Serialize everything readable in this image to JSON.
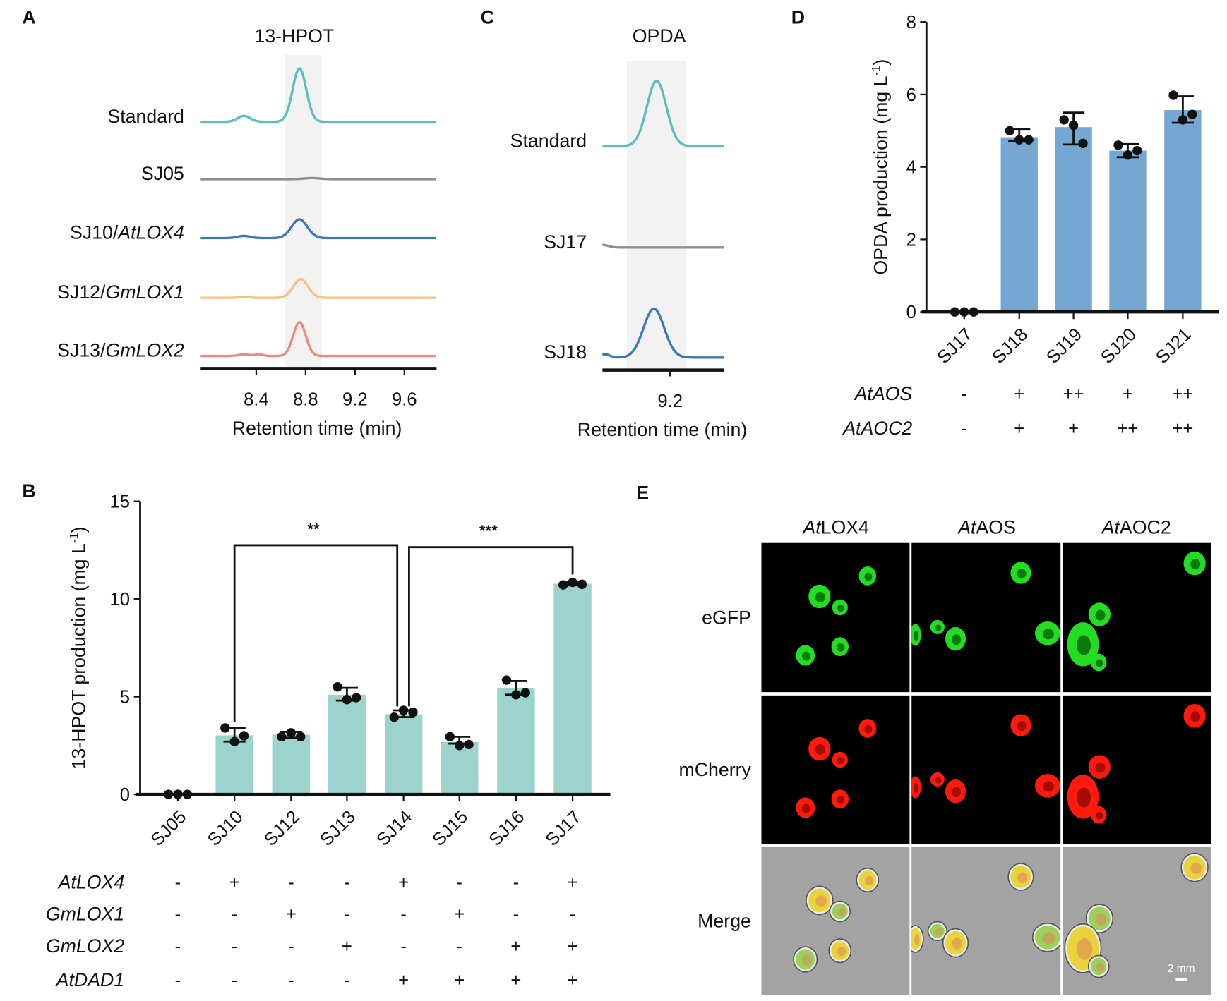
{
  "panels": {
    "A": "A",
    "B": "B",
    "C": "C",
    "D": "D",
    "E": "E"
  },
  "chart_data": [
    {
      "id": "A",
      "type": "line",
      "title": "13-HPOT",
      "xlabel": "Retention time (min)",
      "xlim": [
        7.95,
        9.86
      ],
      "xticks": [
        8.4,
        8.8,
        9.2,
        9.6
      ],
      "highlight_range": [
        8.63,
        8.93
      ],
      "grid": false,
      "traces": [
        {
          "label": "Standard",
          "label_italic": "",
          "color": "#5bbdbd",
          "peaks": [
            {
              "rt": 8.75,
              "height": 100,
              "fwhm": 0.13
            },
            {
              "rt": 8.3,
              "height": 11,
              "fwhm": 0.12
            }
          ]
        },
        {
          "label": "SJ05",
          "label_italic": "",
          "color": "#8e8e8e",
          "peaks": [
            {
              "rt": 8.85,
              "height": 2,
              "fwhm": 0.15
            }
          ]
        },
        {
          "label": "SJ10/",
          "label_italic": "AtLOX4",
          "color": "#3b78b6",
          "peaks": [
            {
              "rt": 8.75,
              "height": 35,
              "fwhm": 0.15
            },
            {
              "rt": 8.3,
              "height": 4,
              "fwhm": 0.12
            }
          ]
        },
        {
          "label": "SJ12/",
          "label_italic": "GmLOX1",
          "color": "#f5c27c",
          "peaks": [
            {
              "rt": 8.76,
              "height": 35,
              "fwhm": 0.14
            },
            {
              "rt": 8.3,
              "height": 2,
              "fwhm": 0.1
            }
          ]
        },
        {
          "label": "SJ13/",
          "label_italic": "GmLOX2",
          "color": "#ee8b78",
          "peaks": [
            {
              "rt": 8.75,
              "height": 63,
              "fwhm": 0.12
            },
            {
              "rt": 8.3,
              "height": 3,
              "fwhm": 0.1
            },
            {
              "rt": 8.42,
              "height": 3,
              "fwhm": 0.08
            }
          ]
        }
      ]
    },
    {
      "id": "C",
      "type": "line",
      "title": "OPDA",
      "xlabel": "Retention time (min)",
      "xlim": [
        8.95,
        9.4
      ],
      "xticks": [
        9.2
      ],
      "highlight_range": [
        9.04,
        9.26
      ],
      "grid": false,
      "traces": [
        {
          "label": "Standard",
          "label_italic": "",
          "color": "#5bbdbd",
          "peaks": [
            {
              "rt": 9.15,
              "height": 100,
              "fwhm": 0.085
            }
          ]
        },
        {
          "label": "SJ17",
          "label_italic": "",
          "color": "#8e8e8e",
          "peaks": [
            {
              "rt": 8.95,
              "height": 4,
              "fwhm": 0.05
            }
          ]
        },
        {
          "label": "SJ18",
          "label_italic": "",
          "color": "#3b78b6",
          "peaks": [
            {
              "rt": 9.14,
              "height": 75,
              "fwhm": 0.09
            },
            {
              "rt": 8.96,
              "height": 5,
              "fwhm": 0.04
            }
          ]
        }
      ]
    },
    {
      "id": "D",
      "type": "bar",
      "ylabel": "OPDA production (mg L",
      "ylabel_sup": "-1",
      "ylabel_end": ")",
      "ylim": [
        0,
        8
      ],
      "yticks": [
        0,
        2,
        4,
        6,
        8
      ],
      "color": "#74a7d2",
      "categories": [
        "SJ17",
        "SJ18",
        "SJ19",
        "SJ20",
        "SJ21"
      ],
      "values": [
        0,
        4.82,
        5.1,
        4.45,
        5.57
      ],
      "error": [
        [
          0,
          0
        ],
        [
          4.72,
          5.05
        ],
        [
          4.62,
          5.5
        ],
        [
          4.27,
          4.63
        ],
        [
          5.22,
          5.95
        ]
      ],
      "points": [
        [
          0,
          0,
          0
        ],
        [
          5.0,
          4.75,
          4.75
        ],
        [
          5.3,
          5.15,
          4.65
        ],
        [
          4.6,
          4.33,
          4.45
        ],
        [
          5.98,
          5.3,
          5.45
        ]
      ],
      "genotype": [
        {
          "gene": "AtAOS",
          "values": [
            "-",
            "+",
            "++",
            "+",
            "++"
          ]
        },
        {
          "gene": "AtAOC2",
          "values": [
            "-",
            "+",
            "+",
            "++",
            "++"
          ]
        }
      ]
    },
    {
      "id": "B",
      "type": "bar",
      "ylabel": "13-HPOT production (mg L",
      "ylabel_sup": "-1",
      "ylabel_end": ")",
      "ylim": [
        0,
        15
      ],
      "yticks": [
        0,
        5,
        10,
        15
      ],
      "color": "#9dd3cd",
      "categories": [
        "SJ05",
        "SJ10",
        "SJ12",
        "SJ13",
        "SJ14",
        "SJ15",
        "SJ16",
        "SJ17"
      ],
      "values": [
        0,
        3.02,
        3.05,
        5.1,
        4.1,
        2.68,
        5.45,
        10.78
      ],
      "error": [
        [
          0,
          0
        ],
        [
          2.7,
          3.4
        ],
        [
          2.9,
          3.2
        ],
        [
          4.8,
          5.45
        ],
        [
          3.95,
          4.3
        ],
        [
          2.6,
          2.95
        ],
        [
          5.1,
          5.8
        ],
        [
          10.7,
          10.85
        ]
      ],
      "points": [
        [
          0,
          0,
          0
        ],
        [
          3.4,
          2.7,
          3.0
        ],
        [
          2.95,
          3.15,
          2.95
        ],
        [
          5.5,
          4.85,
          4.95
        ],
        [
          3.95,
          4.3,
          4.2
        ],
        [
          2.95,
          2.5,
          2.55
        ],
        [
          5.85,
          5.1,
          5.2
        ],
        [
          10.72,
          10.85,
          10.75
        ]
      ],
      "significance": [
        {
          "from": "SJ10",
          "to": "SJ14",
          "label": "**",
          "y": 12.75
        },
        {
          "from": "SJ14",
          "to": "SJ17",
          "label": "***",
          "y": 12.65
        }
      ],
      "genotype": [
        {
          "gene": "AtLOX4",
          "values": [
            "-",
            "+",
            "-",
            "-",
            "+",
            "-",
            "-",
            "+"
          ]
        },
        {
          "gene": "GmLOX1",
          "values": [
            "-",
            "-",
            "+",
            "-",
            "-",
            "+",
            "-",
            "-"
          ]
        },
        {
          "gene": "GmLOX2",
          "values": [
            "-",
            "-",
            "-",
            "+",
            "-",
            "-",
            "+",
            "+"
          ]
        },
        {
          "gene": "AtDAD1",
          "values": [
            "-",
            "-",
            "-",
            "-",
            "+",
            "+",
            "+",
            "+"
          ]
        }
      ]
    }
  ],
  "microscopy": {
    "columns": [
      {
        "italic": "At",
        "rest": "LOX4"
      },
      {
        "italic": "At",
        "rest": "AOS"
      },
      {
        "italic": "At",
        "rest": "AOC2"
      }
    ],
    "rows": [
      "eGFP",
      "mCherry",
      "Merge"
    ],
    "row_colors": [
      "#22dd22",
      "#ff1a0d",
      "#e6d830"
    ],
    "scale_bar": "2 mm"
  }
}
